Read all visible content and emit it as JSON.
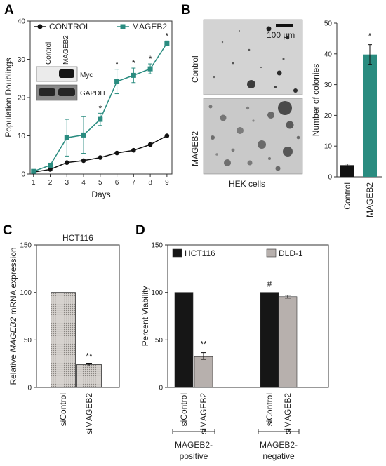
{
  "panels": {
    "a": {
      "letter": "A"
    },
    "b": {
      "letter": "B",
      "scale_bar": "100 µm",
      "row_labels": [
        "Control",
        "MAGEB2"
      ],
      "caption": "HEK cells"
    },
    "c": {
      "letter": "C",
      "title": "HCT116"
    },
    "d": {
      "letter": "D"
    }
  },
  "blot": {
    "lanes": [
      "Control",
      "MAGEB2"
    ],
    "bands": [
      "Myc",
      "GAPDH"
    ]
  },
  "colors": {
    "control": "#111111",
    "mageb2": "#2a8c80",
    "hct116": "#161616",
    "dld1": "#b7b0ad",
    "panel_c_fill": "#c9c5c1"
  },
  "chart_data": [
    {
      "id": "A",
      "type": "line",
      "xlabel": "Days",
      "ylabel": "Population Doublings",
      "x": [
        1,
        2,
        3,
        4,
        5,
        6,
        7,
        8,
        9
      ],
      "xlim": [
        0.8,
        9.3
      ],
      "ylim": [
        0,
        40
      ],
      "yticks": [
        0,
        10,
        20,
        30,
        40
      ],
      "legend": "top",
      "series": [
        {
          "name": "CONTROL",
          "marker": "circle",
          "values": [
            0.5,
            1.2,
            3.0,
            3.5,
            4.3,
            5.5,
            6.2,
            7.7,
            10.0
          ],
          "errors": [
            0,
            0,
            0,
            0,
            0,
            0,
            0,
            0,
            0
          ]
        },
        {
          "name": "MAGEB2",
          "marker": "square",
          "values": [
            0.7,
            2.3,
            9.5,
            10.2,
            14.3,
            24.2,
            25.8,
            27.5,
            34.2
          ],
          "errors": [
            0.3,
            0.5,
            4.8,
            4.8,
            1.6,
            3.2,
            1.9,
            1.3,
            0.6
          ]
        }
      ],
      "significance": [
        {
          "x": 5,
          "text": "*"
        },
        {
          "x": 6,
          "text": "*"
        },
        {
          "x": 7,
          "text": "*"
        },
        {
          "x": 8,
          "text": "*"
        },
        {
          "x": 9,
          "text": "*"
        }
      ]
    },
    {
      "id": "B",
      "type": "bar",
      "ylabel": "Number of colonies",
      "categories": [
        "Control",
        "MAGEB2"
      ],
      "values": [
        3.8,
        39.8
      ],
      "errors": [
        0.4,
        3.2
      ],
      "ylim": [
        0,
        50
      ],
      "yticks": [
        0,
        10,
        20,
        30,
        40,
        50
      ],
      "significance": [
        {
          "index": 1,
          "text": "*"
        }
      ]
    },
    {
      "id": "C",
      "type": "bar",
      "ylabel_prefix": "Relative ",
      "ylabel_gene": "MAGEB2",
      "ylabel_suffix": " mRNA expression",
      "categories": [
        "siControl",
        "siMAGEB2"
      ],
      "values": [
        100,
        24
      ],
      "errors": [
        0,
        1.5
      ],
      "ylim": [
        0,
        150
      ],
      "yticks": [
        0,
        50,
        100,
        150
      ],
      "significance": [
        {
          "index": 1,
          "text": "**"
        }
      ]
    },
    {
      "id": "D",
      "type": "bar",
      "ylabel": "Percent Viability",
      "ylim": [
        0,
        150
      ],
      "yticks": [
        0,
        50,
        100,
        150
      ],
      "legend": "top",
      "legend_entries": [
        "HCT116",
        "DLD-1"
      ],
      "bars": [
        {
          "label": "siControl",
          "value": 100,
          "error": 0,
          "series": "HCT116",
          "group": 0
        },
        {
          "label": "siMAGEB2",
          "value": 33,
          "error": 3.5,
          "series": "HCT116",
          "group": 0
        },
        {
          "label": "siControl",
          "value": 100,
          "error": 0,
          "series": "DLD-1",
          "group": 1
        },
        {
          "label": "siMAGEB2",
          "value": 95.5,
          "error": 1.5,
          "series": "DLD-1",
          "group": 1
        }
      ],
      "groups": [
        "MAGEB2-\npositive",
        "MAGEB2-\nnegative"
      ],
      "significance": [
        {
          "bar": 1,
          "text": "**"
        },
        {
          "bar": 2,
          "text": "#"
        }
      ]
    }
  ]
}
